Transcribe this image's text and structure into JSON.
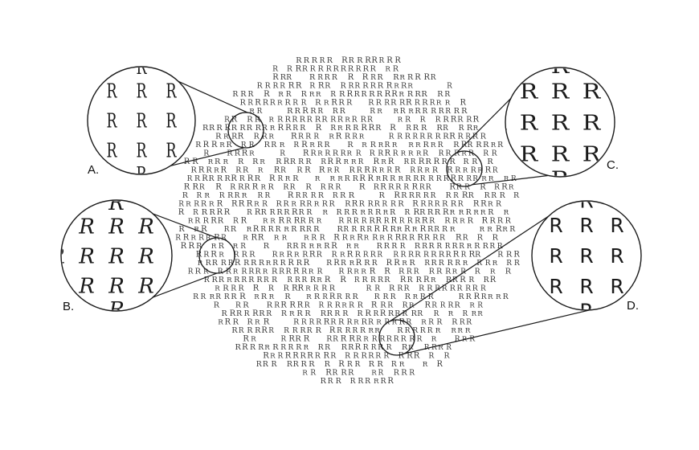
{
  "figure": {
    "glyph": "R",
    "panels": [
      {
        "label": "A.",
        "style": "condensed-serif"
      },
      {
        "label": "B.",
        "style": "italic-serif"
      },
      {
        "label": "C.",
        "style": "wide-serif"
      },
      {
        "label": "D.",
        "style": "sans-serif"
      }
    ]
  },
  "colors": {
    "ink": "#1a1a1a",
    "cloud": "#3a3a3a",
    "background": "#ffffff"
  }
}
